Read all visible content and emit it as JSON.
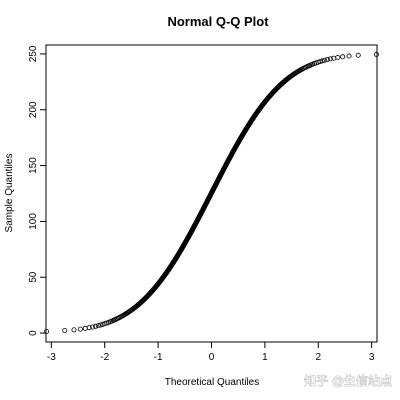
{
  "watermark_text": "知乎 @生信站点",
  "chart_data": {
    "type": "scatter",
    "title": "Normal Q-Q Plot",
    "xlabel": "Theoretical Quantiles",
    "ylabel": "Sample Quantiles",
    "xlim": [
      -3.1,
      3.1
    ],
    "ylim": [
      -8,
      258
    ],
    "x_ticks": [
      -3,
      -2,
      -1,
      0,
      1,
      2,
      3
    ],
    "y_ticks": [
      0,
      50,
      100,
      150,
      200,
      250
    ],
    "grid": false,
    "legend": "none",
    "marker": "open-circle",
    "marker_color": "#000000",
    "curve": {
      "description_of_shape": "S-shaped normal QQ of a bounded uniform-like sample",
      "n_points": 500,
      "sample_min": 1,
      "sample_max": 250,
      "center": [
        0,
        125
      ]
    }
  }
}
